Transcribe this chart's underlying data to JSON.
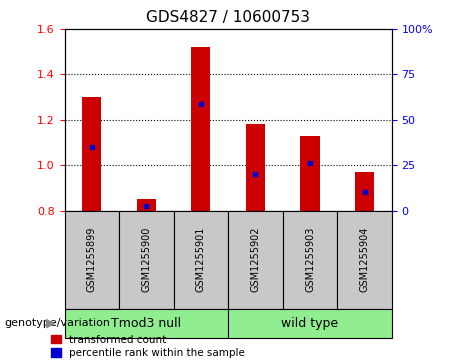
{
  "title": "GDS4827 / 10600753",
  "samples": [
    "GSM1255899",
    "GSM1255900",
    "GSM1255901",
    "GSM1255902",
    "GSM1255903",
    "GSM1255904"
  ],
  "red_values": [
    1.3,
    0.85,
    1.52,
    1.18,
    1.13,
    0.97
  ],
  "blue_values_left": [
    1.08,
    0.82,
    1.27,
    0.96,
    1.01,
    0.88
  ],
  "groups": [
    {
      "label": "Tmod3 null",
      "start": 0,
      "end": 3,
      "color": "#90EE90"
    },
    {
      "label": "wild type",
      "start": 3,
      "end": 6,
      "color": "#90EE90"
    }
  ],
  "ylim_left": [
    0.8,
    1.6
  ],
  "ylim_right": [
    0,
    100
  ],
  "yticks_left": [
    0.8,
    1.0,
    1.2,
    1.4,
    1.6
  ],
  "yticks_right": [
    0,
    25,
    50,
    75,
    100
  ],
  "ytick_labels_right": [
    "0",
    "25",
    "50",
    "75",
    "100%"
  ],
  "bar_color": "#CC0000",
  "marker_color": "#0000CC",
  "bg_plot": "#FFFFFF",
  "bg_label": "#C8C8C8",
  "bg_group": "#90EE90",
  "legend_red": "transformed count",
  "legend_blue": "percentile rank within the sample",
  "genotype_label": "genotype/variation",
  "bar_width": 0.35,
  "title_fontsize": 11,
  "tick_fontsize": 8,
  "sample_fontsize": 7,
  "group_fontsize": 9
}
